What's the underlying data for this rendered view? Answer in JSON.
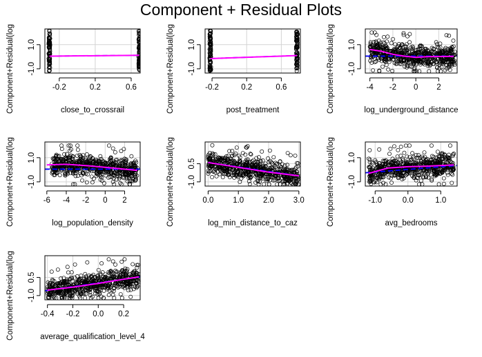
{
  "title": "Component + Residual Plots",
  "colors": {
    "fit": "#0000ff",
    "smooth": "#ff00ff",
    "points": "#000000",
    "grid": "#d3d3d3",
    "frame": "#000000"
  },
  "chart_data": [
    {
      "type": "scatter",
      "xlabel": "close_to_crossrail",
      "ylabel": "Component+Residual(log",
      "xlim": [
        -0.36,
        0.7
      ],
      "ylim": [
        -1.35,
        2.3
      ],
      "xticks": [
        -0.2,
        0.2,
        0.6
      ],
      "xtick_labels": [
        "-0.2",
        "0.2",
        "0.6"
      ],
      "yticks": [
        -1.0,
        1.0
      ],
      "ytick_labels": [
        "-1.0",
        "1.0"
      ],
      "x_clusters": [
        -0.31,
        0.69
      ],
      "y_spread": [
        -1.2,
        2.2
      ],
      "fit_line": [
        [
          -0.31,
          0.05
        ],
        [
          0.69,
          0.12
        ]
      ],
      "smooth_line": [
        [
          -0.31,
          0.05
        ],
        [
          0.69,
          0.12
        ]
      ],
      "grid": true
    },
    {
      "type": "scatter",
      "xlabel": "post_treatment",
      "ylabel": "Component+Residual(log",
      "xlim": [
        -0.28,
        0.82
      ],
      "ylim": [
        -1.35,
        2.3
      ],
      "xticks": [
        -0.2,
        0.2,
        0.6
      ],
      "xtick_labels": [
        "-0.2",
        "0.2",
        "0.6"
      ],
      "yticks": [
        -1.0,
        1.0
      ],
      "ytick_labels": [
        "-1.0",
        "1.0"
      ],
      "x_clusters": [
        -0.22,
        0.78
      ],
      "y_spread": [
        -1.2,
        2.2
      ],
      "fit_line": [
        [
          -0.22,
          -0.15
        ],
        [
          0.78,
          0.1
        ]
      ],
      "smooth_line": [
        [
          -0.22,
          -0.15
        ],
        [
          0.78,
          0.1
        ]
      ],
      "grid": true
    },
    {
      "type": "scatter",
      "xlabel": "log_underground_distance",
      "ylabel": "Component+Residual(log",
      "xlim": [
        -4.4,
        3.6
      ],
      "ylim": [
        -1.35,
        2.3
      ],
      "xticks": [
        -4,
        -2,
        0,
        2
      ],
      "xtick_labels": [
        "-4",
        "-2",
        "0",
        "2"
      ],
      "yticks": [
        -1.0,
        1.0
      ],
      "ytick_labels": [
        "-1.0",
        "1.0"
      ],
      "x_range": [
        -4.0,
        3.4
      ],
      "y_spread": [
        -1.2,
        2.0
      ],
      "fit_line": [
        [
          -4.4,
          0.05
        ],
        [
          3.6,
          0.05
        ]
      ],
      "smooth_line": [
        [
          -4.0,
          0.6
        ],
        [
          -3.0,
          0.45
        ],
        [
          -2.0,
          0.2
        ],
        [
          -1.0,
          0.05
        ],
        [
          0.0,
          -0.05
        ],
        [
          1.0,
          0.0
        ],
        [
          2.0,
          0.02
        ],
        [
          3.3,
          0.03
        ]
      ],
      "grid": true
    },
    {
      "type": "scatter",
      "xlabel": "log_population_density",
      "ylabel": "Component+Residual(log",
      "xlim": [
        -6.2,
        3.6
      ],
      "ylim": [
        -1.35,
        2.3
      ],
      "xticks": [
        -6,
        -4,
        -2,
        0,
        2
      ],
      "xtick_labels": [
        "-6",
        "-4",
        "-2",
        "0",
        "2"
      ],
      "yticks": [
        -1.0,
        1.0
      ],
      "ytick_labels": [
        "-1.0",
        "1.0"
      ],
      "x_range": [
        -5.5,
        3.3
      ],
      "y_spread": [
        -1.2,
        2.0
      ],
      "fit_line": [
        [
          -6.2,
          0.05
        ],
        [
          3.6,
          0.05
        ]
      ],
      "smooth_line": [
        [
          -6.0,
          0.4
        ],
        [
          -4.0,
          0.45
        ],
        [
          -2.0,
          0.35
        ],
        [
          0.0,
          0.2
        ],
        [
          2.0,
          0.05
        ],
        [
          3.3,
          -0.05
        ]
      ],
      "grid": true
    },
    {
      "type": "scatter",
      "xlabel": "log_min_distance_to_caz",
      "ylabel": "Component+Residual(log",
      "xlim": [
        -0.1,
        3.05
      ],
      "ylim": [
        -1.35,
        2.3
      ],
      "xticks": [
        0.0,
        1.0,
        2.0,
        3.0
      ],
      "xtick_labels": [
        "0.0",
        "1.0",
        "2.0",
        "3.0"
      ],
      "yticks": [
        -1.0,
        0.5
      ],
      "ytick_labels": [
        "-1.0",
        "0.5"
      ],
      "x_range": [
        0.0,
        3.0
      ],
      "y_spread": [
        -1.2,
        2.1
      ],
      "fit_line": [
        [
          0.0,
          0.6
        ],
        [
          3.0,
          -0.5
        ]
      ],
      "smooth_line": [
        [
          0.0,
          0.6
        ],
        [
          0.5,
          0.4
        ],
        [
          1.0,
          0.2
        ],
        [
          1.5,
          0.0
        ],
        [
          2.0,
          -0.2
        ],
        [
          2.5,
          -0.35
        ],
        [
          3.0,
          -0.5
        ]
      ],
      "grid": true
    },
    {
      "type": "scatter",
      "xlabel": "avg_bedrooms",
      "ylabel": "Component+Residual(log",
      "xlim": [
        -1.3,
        1.5
      ],
      "ylim": [
        -1.35,
        2.3
      ],
      "xticks": [
        -1.0,
        0.0,
        1.0
      ],
      "xtick_labels": [
        "-1.0",
        "0.0",
        "1.0"
      ],
      "yticks": [
        -1.0,
        1.0
      ],
      "ytick_labels": [
        "-1.0",
        "1.0"
      ],
      "x_range": [
        -1.2,
        1.4
      ],
      "y_spread": [
        -1.2,
        2.0
      ],
      "fit_line": [
        [
          -1.3,
          -0.25
        ],
        [
          1.5,
          0.35
        ]
      ],
      "smooth_line": [
        [
          -1.2,
          -0.3
        ],
        [
          -0.6,
          0.15
        ],
        [
          0.0,
          0.25
        ],
        [
          0.6,
          0.3
        ],
        [
          1.4,
          0.4
        ]
      ],
      "grid": true
    },
    {
      "type": "scatter",
      "xlabel": "average_qualification_level_4",
      "ylabel": "Component+Residual(log",
      "xlim": [
        -0.42,
        0.33
      ],
      "ylim": [
        -1.35,
        2.3
      ],
      "xticks": [
        -0.4,
        -0.2,
        0.0,
        0.2
      ],
      "xtick_labels": [
        "-0.4",
        "-0.2",
        "0.0",
        "0.2"
      ],
      "yticks": [
        -1.0,
        0.5
      ],
      "ytick_labels": [
        "-1.0",
        "0.5"
      ],
      "x_range": [
        -0.4,
        0.32
      ],
      "y_spread": [
        -1.2,
        2.0
      ],
      "fit_line": [
        [
          -0.42,
          -0.6
        ],
        [
          0.33,
          0.55
        ]
      ],
      "smooth_line": [
        [
          -0.4,
          -0.55
        ],
        [
          -0.2,
          -0.3
        ],
        [
          0.0,
          0.0
        ],
        [
          0.2,
          0.35
        ],
        [
          0.32,
          0.55
        ]
      ],
      "grid": true
    }
  ]
}
